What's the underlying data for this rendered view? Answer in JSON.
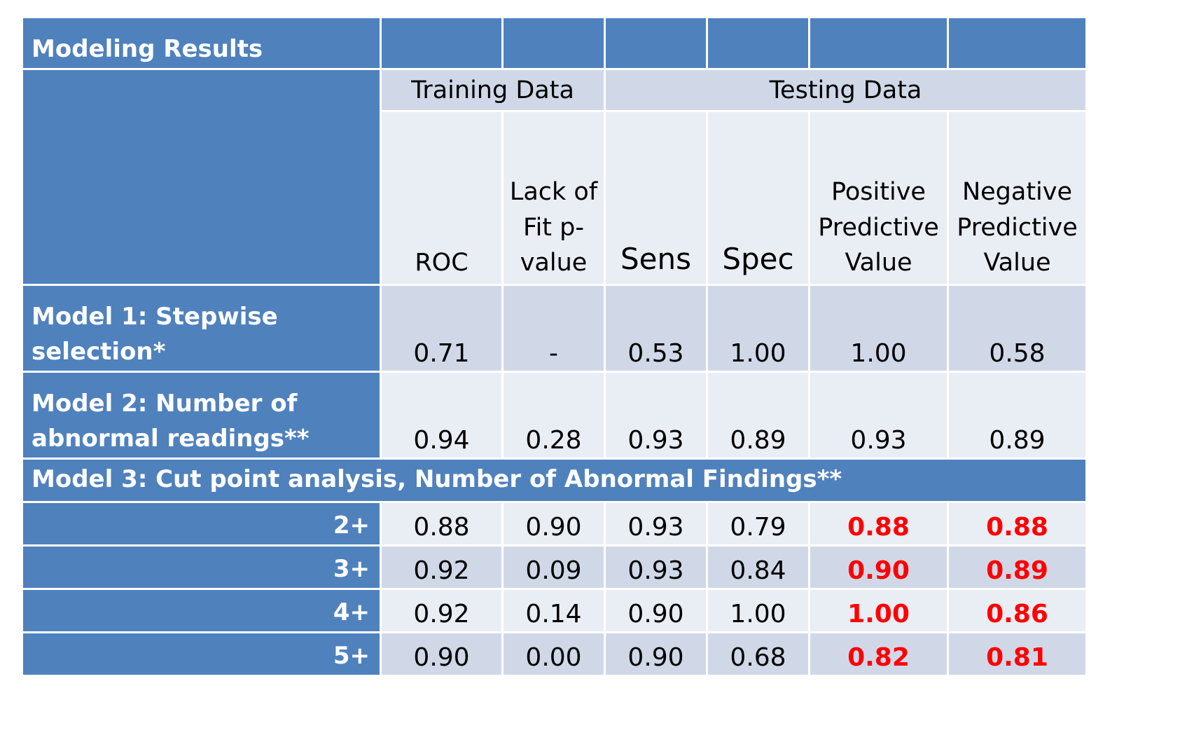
{
  "title": "Modeling Results",
  "groups": {
    "training": "Training Data",
    "testing": "Testing Data"
  },
  "columns": {
    "roc": "ROC",
    "lof_line1": "Lack of",
    "lof_line2": "Fit p-",
    "lof_line3": "value",
    "sens": "Sens",
    "spec": "Spec",
    "ppv_line1": "Positive",
    "ppv_line2": "Predictive",
    "ppv_line3": "Value",
    "npv_line1": "Negative",
    "npv_line2": "Predictive",
    "npv_line3": "Value"
  },
  "model1": {
    "label_line1": "Model 1: Stepwise",
    "label_line2": "selection*",
    "values": [
      "0.71",
      "-",
      "0.53",
      "1.00",
      "1.00",
      "0.58"
    ]
  },
  "model2": {
    "label_line1": "Model 2: Number of",
    "label_line2": "abnormal readings**",
    "values": [
      "0.94",
      "0.28",
      "0.93",
      "0.89",
      "0.93",
      "0.89"
    ]
  },
  "model3_label": "Model 3: Cut point analysis, Number of Abnormal Findings**",
  "cut_rows": [
    {
      "label": "2+",
      "values": [
        "0.88",
        "0.90",
        "0.93",
        "0.79",
        "0.88",
        "0.88"
      ]
    },
    {
      "label": "3+",
      "values": [
        "0.92",
        "0.09",
        "0.93",
        "0.84",
        "0.90",
        "0.89"
      ]
    },
    {
      "label": "4+",
      "values": [
        "0.92",
        "0.14",
        "0.90",
        "1.00",
        "1.00",
        "0.86"
      ]
    },
    {
      "label": "5+",
      "values": [
        "0.90",
        "0.00",
        "0.90",
        "0.68",
        "0.82",
        "0.81"
      ]
    }
  ],
  "colors": {
    "header_blue": "#4f81bd",
    "light_a": "#d0d8e8",
    "light_b": "#e9edf4",
    "highlight": "#ff0000"
  }
}
